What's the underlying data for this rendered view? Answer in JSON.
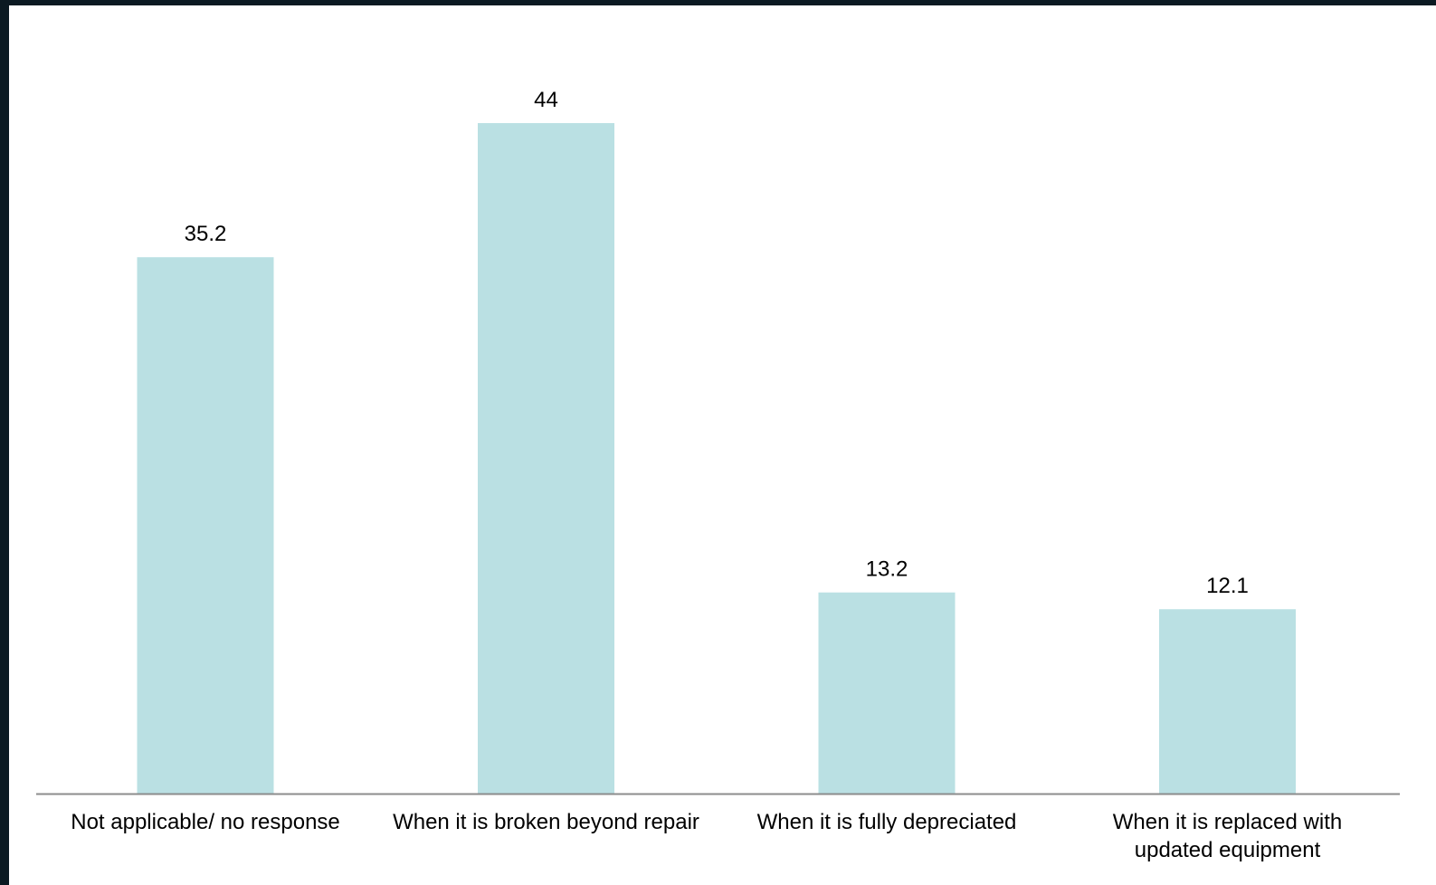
{
  "chart_data": {
    "type": "bar",
    "title": "",
    "xlabel": "",
    "ylabel": "",
    "categories": [
      [
        "Not applicable/ no response"
      ],
      [
        "When it is broken beyond repair"
      ],
      [
        "When it is fully depreciated"
      ],
      [
        "When it is replaced with",
        "updated equipment"
      ]
    ],
    "values": [
      35.2,
      44,
      13.2,
      12.1
    ],
    "value_labels": [
      "35.2",
      "44",
      "13.2",
      "12.1"
    ],
    "ylim": [
      0,
      50
    ],
    "grid": false,
    "legend": "none",
    "colors": {
      "bar": "#bae0e3",
      "axis": "#8c8c8c"
    }
  }
}
